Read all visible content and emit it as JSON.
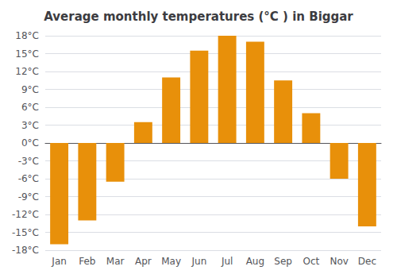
{
  "chart_data": {
    "type": "bar",
    "title": "Average monthly temperatures (°C ) in Biggar",
    "categories": [
      "Jan",
      "Feb",
      "Mar",
      "Apr",
      "May",
      "Jun",
      "Jul",
      "Aug",
      "Sep",
      "Oct",
      "Nov",
      "Dec"
    ],
    "values": [
      -17,
      -13,
      -6.5,
      3.5,
      11,
      15.5,
      18,
      17,
      10.5,
      5,
      -6,
      -14
    ],
    "color": "#E8900A",
    "ylim": [
      -18,
      18
    ],
    "yticks": [
      {
        "value": -18,
        "label": "-18°C"
      },
      {
        "value": -15,
        "label": "-15°C"
      },
      {
        "value": -12,
        "label": "-12°C"
      },
      {
        "value": -9,
        "label": "-9°C"
      },
      {
        "value": -6,
        "label": "-6°C"
      },
      {
        "value": -3,
        "label": "-3°C"
      },
      {
        "value": 0,
        "label": "0°C"
      },
      {
        "value": 3,
        "label": "3°C"
      },
      {
        "value": 6,
        "label": "6°C"
      },
      {
        "value": 9,
        "label": "9°C"
      },
      {
        "value": 12,
        "label": "12°C"
      },
      {
        "value": 15,
        "label": "15°C"
      },
      {
        "value": 18,
        "label": "18°C"
      }
    ],
    "grid": true
  }
}
